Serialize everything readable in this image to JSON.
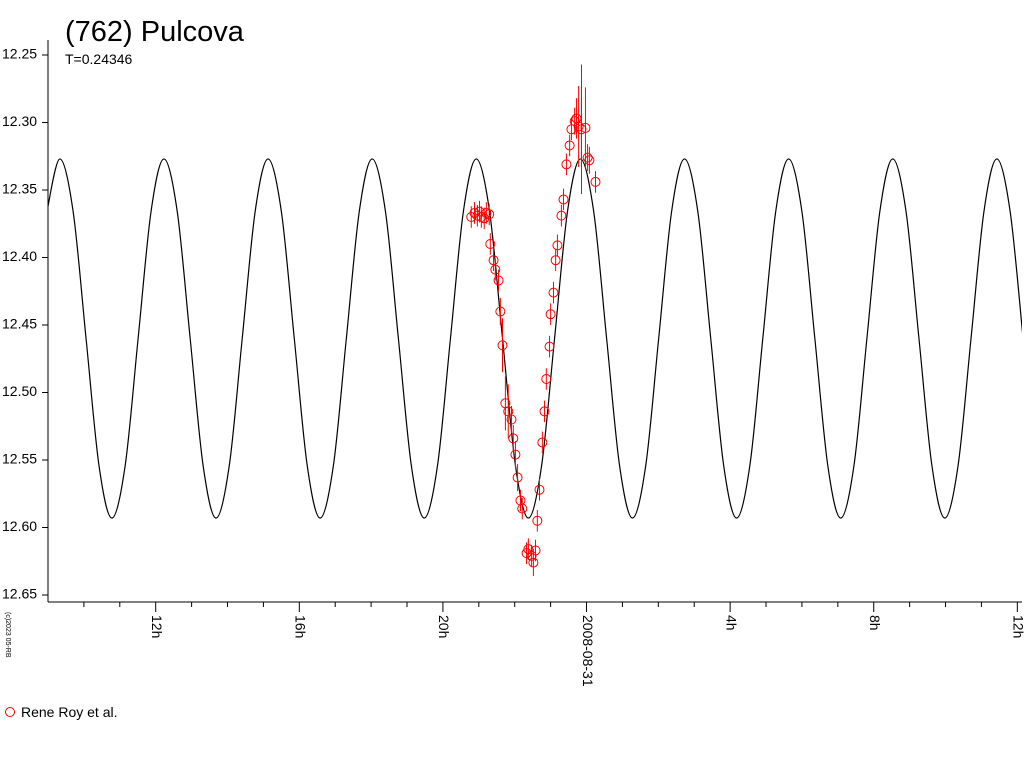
{
  "chart_data": {
    "type": "scatter",
    "title": "(762) Pulcova",
    "subtitle": "T=0.24346",
    "credit": "(c)2023 05-RB",
    "ylim": [
      12.25,
      12.65
    ],
    "yinverted": true,
    "yticks": [
      {
        "value": 12.25,
        "label": "12.25"
      },
      {
        "value": 12.3,
        "label": "12.30"
      },
      {
        "value": 12.35,
        "label": "12.35"
      },
      {
        "value": 12.4,
        "label": "12.40"
      },
      {
        "value": 12.45,
        "label": "12.45"
      },
      {
        "value": 12.5,
        "label": "12.50"
      },
      {
        "value": 12.55,
        "label": "12.55"
      },
      {
        "value": 12.6,
        "label": "12.60"
      },
      {
        "value": 12.65,
        "label": "12.65"
      }
    ],
    "xlim": [
      -15,
      12.13
    ],
    "xticks": [
      {
        "value": -12,
        "label": "12h"
      },
      {
        "value": -8,
        "label": "16h"
      },
      {
        "value": -4,
        "label": "20h"
      },
      {
        "value": 0,
        "label": "2008-08-31"
      },
      {
        "value": 4,
        "label": "4h"
      },
      {
        "value": 8,
        "label": "8h"
      },
      {
        "value": 12,
        "label": "12h"
      }
    ],
    "xminorticks": [
      -14,
      -13,
      -11,
      -10,
      -9,
      -7,
      -6,
      -5,
      -3,
      -2,
      -1,
      1,
      2,
      3,
      5,
      6,
      7,
      9,
      10,
      11
    ],
    "legend": "bottom-left",
    "curve": {
      "color": "#000000",
      "x": [
        -15.03,
        -14.67,
        -14.3,
        -13.94,
        -13.58,
        -13.22,
        -12.85,
        -12.49,
        -12.13,
        -11.77,
        -11.4,
        -11.04,
        -10.68,
        -10.32,
        -9.95,
        -9.59,
        -9.23,
        -8.87,
        -8.5,
        -8.14,
        -7.78,
        -7.42,
        -7.05,
        -6.69,
        -6.33,
        -5.97,
        -5.6,
        -5.24,
        -4.88,
        -4.52,
        -4.15,
        -3.79,
        -3.43,
        -3.07,
        -2.7,
        -2.34,
        -1.98,
        -1.62,
        -1.25,
        -0.89,
        -0.53,
        -0.17,
        0.2,
        0.56,
        0.92,
        1.28,
        1.65,
        2.01,
        2.37,
        2.73,
        3.1,
        3.46,
        3.82,
        4.18,
        4.55,
        4.91,
        5.27,
        5.63,
        6.0,
        6.36,
        6.72,
        7.08,
        7.45,
        7.81,
        8.17,
        8.53,
        8.9,
        9.26,
        9.62,
        9.98,
        10.35,
        10.71,
        11.07,
        11.43,
        11.8,
        12.16
      ],
      "values": [
        12.366,
        12.327,
        12.366,
        12.46,
        12.554,
        12.593,
        12.554,
        12.46,
        12.366,
        12.327,
        12.366,
        12.46,
        12.554,
        12.593,
        12.554,
        12.46,
        12.366,
        12.327,
        12.366,
        12.46,
        12.554,
        12.593,
        12.554,
        12.46,
        12.366,
        12.327,
        12.366,
        12.46,
        12.554,
        12.593,
        12.554,
        12.46,
        12.366,
        12.327,
        12.366,
        12.46,
        12.554,
        12.593,
        12.554,
        12.46,
        12.366,
        12.327,
        12.366,
        12.46,
        12.554,
        12.593,
        12.554,
        12.46,
        12.366,
        12.327,
        12.366,
        12.46,
        12.554,
        12.593,
        12.554,
        12.46,
        12.366,
        12.327,
        12.366,
        12.46,
        12.554,
        12.593,
        12.554,
        12.46,
        12.366,
        12.327,
        12.366,
        12.46,
        12.554,
        12.593,
        12.554,
        12.46,
        12.366,
        12.327,
        12.366,
        12.46
      ]
    },
    "series": [
      {
        "name": "Rene Roy et al.",
        "color": "#ff0000",
        "x": [
          -3.21,
          -3.12,
          -3.04,
          -2.98,
          -2.93,
          -2.85,
          -2.79,
          -2.71,
          -2.68,
          -2.59,
          -2.54,
          -2.45,
          -2.4,
          -2.34,
          -2.26,
          -2.18,
          -2.09,
          -2.04,
          -1.98,
          -1.92,
          -1.84,
          -1.79,
          -1.67,
          -1.62,
          -1.53,
          -1.48,
          -1.42,
          -1.37,
          -1.31,
          -1.23,
          -1.17,
          -1.12,
          -1.03,
          -1.0,
          -0.92,
          -0.86,
          -0.81,
          -0.7,
          -0.64,
          -0.56,
          -0.47,
          -0.42,
          -0.33,
          -0.28,
          -0.22,
          -0.14,
          -0.03,
          0.03,
          0.08,
          0.25
        ],
        "values": [
          12.37,
          12.367,
          12.369,
          12.366,
          12.37,
          12.371,
          12.367,
          12.368,
          12.39,
          12.402,
          12.409,
          12.417,
          12.44,
          12.465,
          12.508,
          12.514,
          12.52,
          12.534,
          12.546,
          12.563,
          12.58,
          12.586,
          12.619,
          12.616,
          12.621,
          12.626,
          12.617,
          12.595,
          12.572,
          12.537,
          12.514,
          12.49,
          12.466,
          12.442,
          12.426,
          12.402,
          12.391,
          12.369,
          12.357,
          12.331,
          12.317,
          12.305,
          12.299,
          12.297,
          12.303,
          12.305,
          12.304,
          12.326,
          12.328,
          12.344
        ],
        "errors": [
          0.008,
          0.008,
          0.008,
          0.008,
          0.008,
          0.008,
          0.008,
          0.008,
          0.008,
          0.008,
          0.008,
          0.008,
          0.01,
          0.02,
          0.02,
          0.02,
          0.01,
          0.01,
          0.01,
          0.01,
          0.008,
          0.008,
          0.008,
          0.008,
          0.008,
          0.01,
          0.008,
          0.008,
          0.008,
          0.008,
          0.008,
          0.008,
          0.008,
          0.008,
          0.008,
          0.008,
          0.008,
          0.008,
          0.008,
          0.008,
          0.008,
          0.008,
          0.01,
          0.015,
          0.03,
          0.048,
          0.03,
          0.01,
          0.01,
          0.008
        ]
      }
    ]
  }
}
